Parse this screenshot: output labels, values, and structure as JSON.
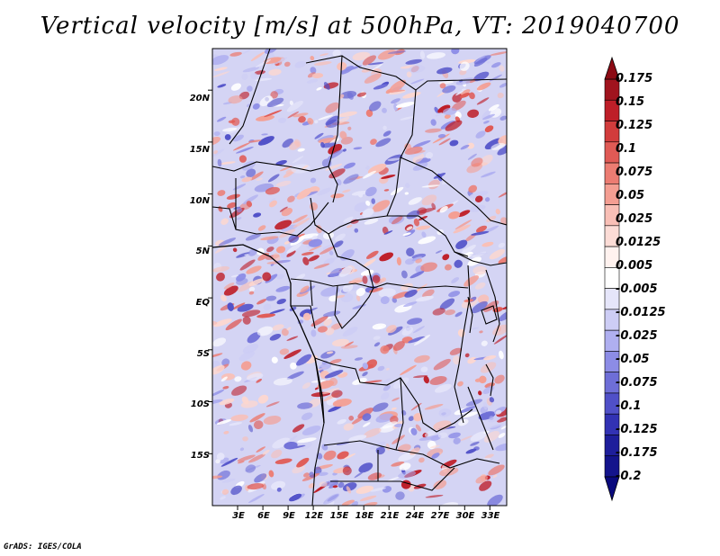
{
  "title": "Vertical velocity [m/s] at 500hPa, VT: 2019040700",
  "credit": "GrADS: IGES/COLA",
  "map": {
    "field": "vertical velocity",
    "level": "500hPa",
    "lon_range": [
      0,
      35
    ],
    "lat_range": [
      -20,
      24
    ],
    "lat_labels": [
      "20N",
      "15N",
      "10N",
      "5N",
      "EQ",
      "5S",
      "10S",
      "15S"
    ],
    "lat_values": [
      20,
      15,
      10,
      5,
      0,
      -5,
      -10,
      -15
    ],
    "lon_labels": [
      "3E",
      "6E",
      "9E",
      "12E",
      "15E",
      "18E",
      "21E",
      "24E",
      "27E",
      "30E",
      "33E"
    ],
    "lon_values": [
      3,
      6,
      9,
      12,
      15,
      18,
      21,
      24,
      27,
      30,
      33
    ]
  },
  "colorbar": {
    "labels": [
      "0.175",
      "0.15",
      "0.125",
      "0.1",
      "0.075",
      "0.05",
      "0.025",
      "0.0125",
      "0.005",
      "-0.005",
      "-0.0125",
      "-0.025",
      "-0.05",
      "-0.075",
      "-0.1",
      "-0.125",
      "-0.175",
      "-0.2"
    ],
    "colors": [
      "#a0141e",
      "#be1e28",
      "#d23c3c",
      "#e05a55",
      "#ec7c72",
      "#f49e92",
      "#f9bfb6",
      "#fcdcd6",
      "#fff2ef",
      "#ffffff",
      "#e6e6fa",
      "#cdcdf5",
      "#afaff0",
      "#8c8ce6",
      "#6e6ed7",
      "#5050c8",
      "#3232b4",
      "#1e1e9b",
      "#14148c"
    ]
  }
}
